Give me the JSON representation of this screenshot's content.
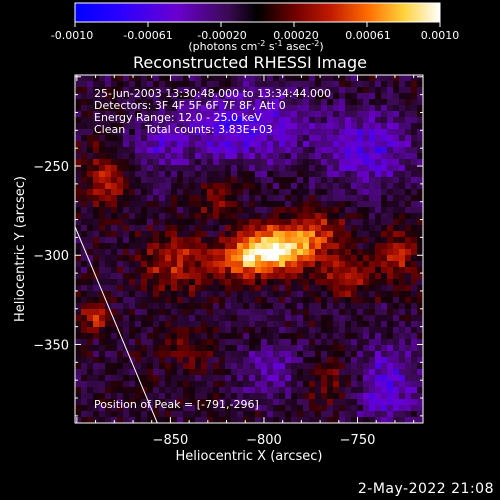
{
  "colorbar": {
    "tick_labels": [
      "-0.0010",
      "-0.00061",
      "-0.00020",
      "0.00020",
      "0.00061",
      "0.0010"
    ],
    "units_main": "(photons cm",
    "units_exp1": "-2",
    "units_mid": " s",
    "units_exp2": "-1",
    "units_tail": " asec",
    "units_exp3": "-2",
    "units_close": ")",
    "range": [
      -0.001,
      0.001
    ]
  },
  "chart_data": {
    "type": "heatmap",
    "title": "Reconstructed RHESSI Image",
    "xlabel": "Heliocentric X (arcsec)",
    "ylabel": "Heliocentric Y (arcsec)",
    "x_ticks": [
      -850,
      -800,
      -750
    ],
    "x_tick_labels": [
      "−850",
      "−800",
      "−750"
    ],
    "y_ticks": [
      -250,
      -300,
      -350
    ],
    "y_tick_labels": [
      "−250",
      "−300",
      "−350"
    ],
    "xlim": [
      -901,
      -715
    ],
    "ylim": [
      -394,
      -199
    ],
    "peak": [
      -791,
      -296
    ],
    "limb_line": [
      [
        -901,
        -284
      ],
      [
        -857,
        -394
      ]
    ],
    "sources": [
      {
        "x": -791,
        "y": -296,
        "amp": 1.0,
        "sx": 14,
        "sy": 9
      },
      {
        "x": -812,
        "y": -303,
        "amp": 0.55,
        "sx": 12,
        "sy": 8
      },
      {
        "x": -770,
        "y": -285,
        "amp": 0.35,
        "sx": 10,
        "sy": 8
      },
      {
        "x": -848,
        "y": -305,
        "amp": 0.45,
        "sx": 12,
        "sy": 12
      },
      {
        "x": -885,
        "y": -258,
        "amp": 0.4,
        "sx": 8,
        "sy": 12
      },
      {
        "x": -890,
        "y": -335,
        "amp": 0.45,
        "sx": 6,
        "sy": 6
      },
      {
        "x": -755,
        "y": -312,
        "amp": 0.45,
        "sx": 10,
        "sy": 8
      },
      {
        "x": -728,
        "y": -300,
        "amp": 0.4,
        "sx": 8,
        "sy": 10
      },
      {
        "x": -765,
        "y": -370,
        "amp": 0.3,
        "sx": 10,
        "sy": 10
      },
      {
        "x": -826,
        "y": -268,
        "amp": 0.3,
        "sx": 8,
        "sy": 8
      },
      {
        "x": -842,
        "y": -352,
        "amp": 0.25,
        "sx": 10,
        "sy": 8
      },
      {
        "x": -810,
        "y": -228,
        "amp": -0.5,
        "sx": 22,
        "sy": 14
      },
      {
        "x": -745,
        "y": -240,
        "amp": -0.45,
        "sx": 18,
        "sy": 14
      },
      {
        "x": -735,
        "y": -372,
        "amp": -0.4,
        "sx": 14,
        "sy": 16
      },
      {
        "x": -855,
        "y": -240,
        "amp": -0.3,
        "sx": 12,
        "sy": 12
      },
      {
        "x": -795,
        "y": -365,
        "amp": -0.25,
        "sx": 14,
        "sy": 12
      }
    ]
  },
  "annotations": {
    "time_range": "25-Jun-2003 13:30:48.000 to 13:34:44.000",
    "detectors": "Detectors: 3F 4F 5F 6F 7F 8F, Att 0",
    "energy_range": "Energy Range: 12.0 - 25.0 keV",
    "method": "Clean",
    "total_counts": "Total counts: 3.83E+03",
    "peak_position": "Position of Peak = [-791,-296]"
  },
  "footer": {
    "date": "2-May-2022 21:08"
  },
  "colors": {
    "background": "#000000",
    "text": "#ffffff"
  }
}
